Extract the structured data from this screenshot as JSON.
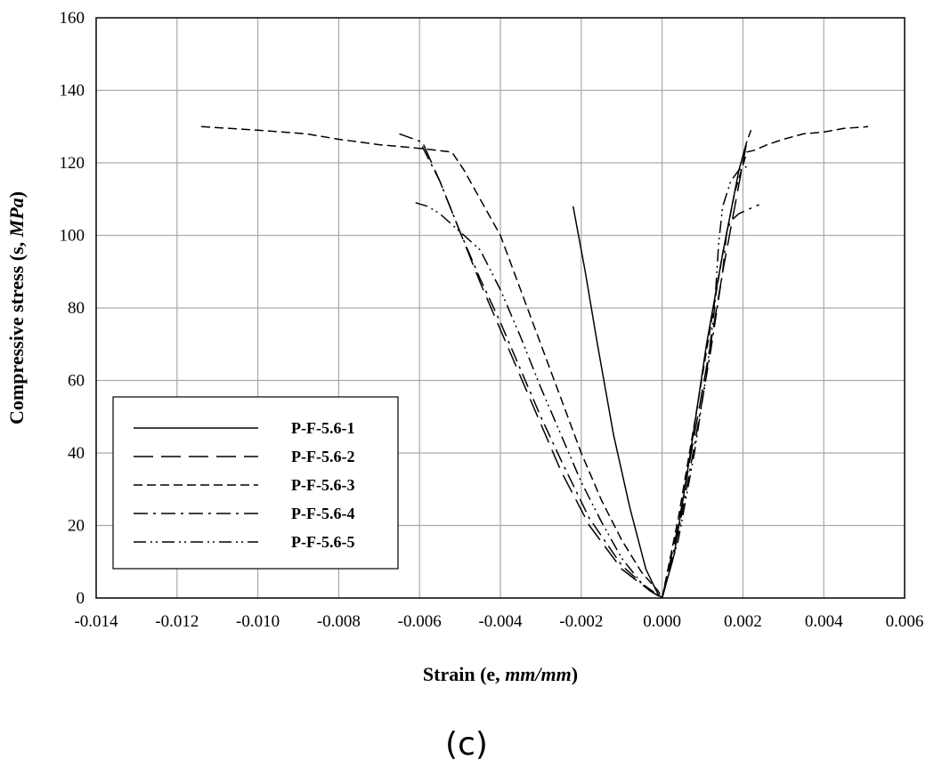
{
  "chart_data": {
    "type": "line",
    "xlabel": {
      "prefix": "Strain (e, ",
      "unit": "mm/mm",
      "suffix": ")"
    },
    "ylabel": {
      "prefix": "Compressive stress (s, ",
      "unit": "MPa",
      "suffix": ")"
    },
    "xlim": [
      -0.014,
      0.006
    ],
    "ylim": [
      0,
      160
    ],
    "x_ticks": [
      -0.014,
      -0.012,
      -0.01,
      -0.008,
      -0.006,
      -0.004,
      -0.002,
      0.0,
      0.002,
      0.004,
      0.006
    ],
    "x_tick_labels": [
      "-0.014",
      "-0.012",
      "-0.010",
      "-0.008",
      "-0.006",
      "-0.004",
      "-0.002",
      "0.000",
      "0.002",
      "0.004",
      "0.006"
    ],
    "y_ticks": [
      0,
      20,
      40,
      60,
      80,
      100,
      120,
      140,
      160
    ],
    "y_tick_labels": [
      "0",
      "20",
      "40",
      "60",
      "80",
      "100",
      "120",
      "140",
      "160"
    ],
    "grid": true,
    "legend_position": "bottom-left",
    "panel_label": "(c)",
    "series": [
      {
        "name": "P-F-5.6-1",
        "dash": "solid",
        "segments": [
          [
            [
              -0.0022,
              108
            ],
            [
              -0.0019,
              90
            ],
            [
              -0.0016,
              70
            ],
            [
              -0.0012,
              45
            ],
            [
              -0.0008,
              25
            ],
            [
              -0.0004,
              8
            ],
            [
              -0.0001,
              1
            ],
            [
              0.0,
              0
            ]
          ],
          [
            [
              0.0,
              0
            ],
            [
              0.0003,
              12
            ],
            [
              0.0007,
              40
            ],
            [
              0.0011,
              70
            ],
            [
              0.0015,
              95
            ],
            [
              0.0019,
              118
            ],
            [
              0.0021,
              126
            ]
          ]
        ]
      },
      {
        "name": "P-F-5.6-2",
        "dash": "long-dash",
        "segments": [
          [
            [
              -0.0059,
              125
            ],
            [
              -0.0055,
              115
            ],
            [
              -0.005,
              101
            ],
            [
              -0.0045,
              87
            ],
            [
              -0.004,
              74
            ],
            [
              -0.0035,
              61
            ],
            [
              -0.003,
              48
            ],
            [
              -0.0025,
              35
            ],
            [
              -0.0018,
              20
            ],
            [
              -0.001,
              8
            ],
            [
              -0.0003,
              2
            ],
            [
              0.0,
              0
            ]
          ],
          [
            [
              0.0,
              0
            ],
            [
              0.0004,
              20
            ],
            [
              0.0008,
              45
            ],
            [
              0.0012,
              70
            ],
            [
              0.0015,
              90
            ],
            [
              0.0018,
              108
            ],
            [
              0.0021,
              126
            ],
            [
              0.0022,
              129
            ]
          ]
        ]
      },
      {
        "name": "P-F-5.6-3",
        "dash": "short-dash",
        "segments": [
          [
            [
              -0.0114,
              130
            ],
            [
              -0.01,
              129
            ],
            [
              -0.0088,
              128
            ],
            [
              -0.008,
              126.5
            ],
            [
              -0.007,
              125
            ],
            [
              -0.006,
              124
            ],
            [
              -0.0052,
              123
            ],
            [
              -0.0049,
              118
            ],
            [
              -0.0045,
              110
            ],
            [
              -0.004,
              100
            ],
            [
              -0.0035,
              85
            ],
            [
              -0.003,
              70
            ],
            [
              -0.0025,
              55
            ],
            [
              -0.002,
              40
            ],
            [
              -0.0015,
              27
            ],
            [
              -0.001,
              16
            ],
            [
              -0.0005,
              7
            ],
            [
              -0.0001,
              2
            ],
            [
              0.0,
              0
            ]
          ],
          [
            [
              0.0,
              0
            ],
            [
              0.0004,
              22
            ],
            [
              0.0008,
              48
            ],
            [
              0.0012,
              75
            ],
            [
              0.0015,
              95
            ],
            [
              0.0018,
              112
            ],
            [
              0.0021,
              123
            ],
            [
              0.0023,
              123.5
            ],
            [
              0.0026,
              125
            ],
            [
              0.003,
              126.5
            ],
            [
              0.0035,
              128
            ],
            [
              0.004,
              128.5
            ],
            [
              0.0045,
              129.5
            ],
            [
              0.0051,
              130
            ]
          ]
        ]
      },
      {
        "name": "P-F-5.6-4",
        "dash": "dash-dot",
        "segments": [
          [
            [
              -0.0065,
              128
            ],
            [
              -0.006,
              126
            ],
            [
              -0.0055,
              115
            ],
            [
              -0.005,
              101
            ],
            [
              -0.0045,
              88
            ],
            [
              -0.004,
              76
            ],
            [
              -0.0035,
              63
            ],
            [
              -0.003,
              50
            ],
            [
              -0.0025,
              38
            ],
            [
              -0.0018,
              22
            ],
            [
              -0.001,
              9
            ],
            [
              -0.0003,
              2
            ],
            [
              0.0,
              0
            ]
          ],
          [
            [
              0.0,
              0
            ],
            [
              0.0004,
              18
            ],
            [
              0.0008,
              42
            ],
            [
              0.0012,
              68
            ],
            [
              0.0015,
              90
            ],
            [
              0.0016,
              101
            ],
            [
              0.0017,
              104
            ],
            [
              0.0019,
              106
            ],
            [
              0.0021,
              107
            ],
            [
              0.0024,
              108.5
            ]
          ]
        ]
      },
      {
        "name": "P-F-5.6-5",
        "dash": "dash-dot-dot",
        "segments": [
          [
            [
              -0.0061,
              109
            ],
            [
              -0.0058,
              108
            ],
            [
              -0.0055,
              106
            ],
            [
              -0.0051,
              102
            ],
            [
              -0.0045,
              96
            ],
            [
              -0.004,
              85
            ],
            [
              -0.0035,
              72
            ],
            [
              -0.003,
              58
            ],
            [
              -0.0025,
              45
            ],
            [
              -0.002,
              32
            ],
            [
              -0.0015,
              21
            ],
            [
              -0.001,
              11
            ],
            [
              -0.0005,
              4
            ],
            [
              0.0,
              0
            ]
          ],
          [
            [
              0.0,
              0
            ],
            [
              0.0004,
              16
            ],
            [
              0.0008,
              40
            ],
            [
              0.0011,
              62
            ],
            [
              0.0013,
              80
            ],
            [
              0.0014,
              98
            ],
            [
              0.0015,
              108
            ],
            [
              0.0017,
              115
            ],
            [
              0.0019,
              118
            ],
            [
              0.0021,
              119
            ]
          ]
        ]
      }
    ]
  }
}
